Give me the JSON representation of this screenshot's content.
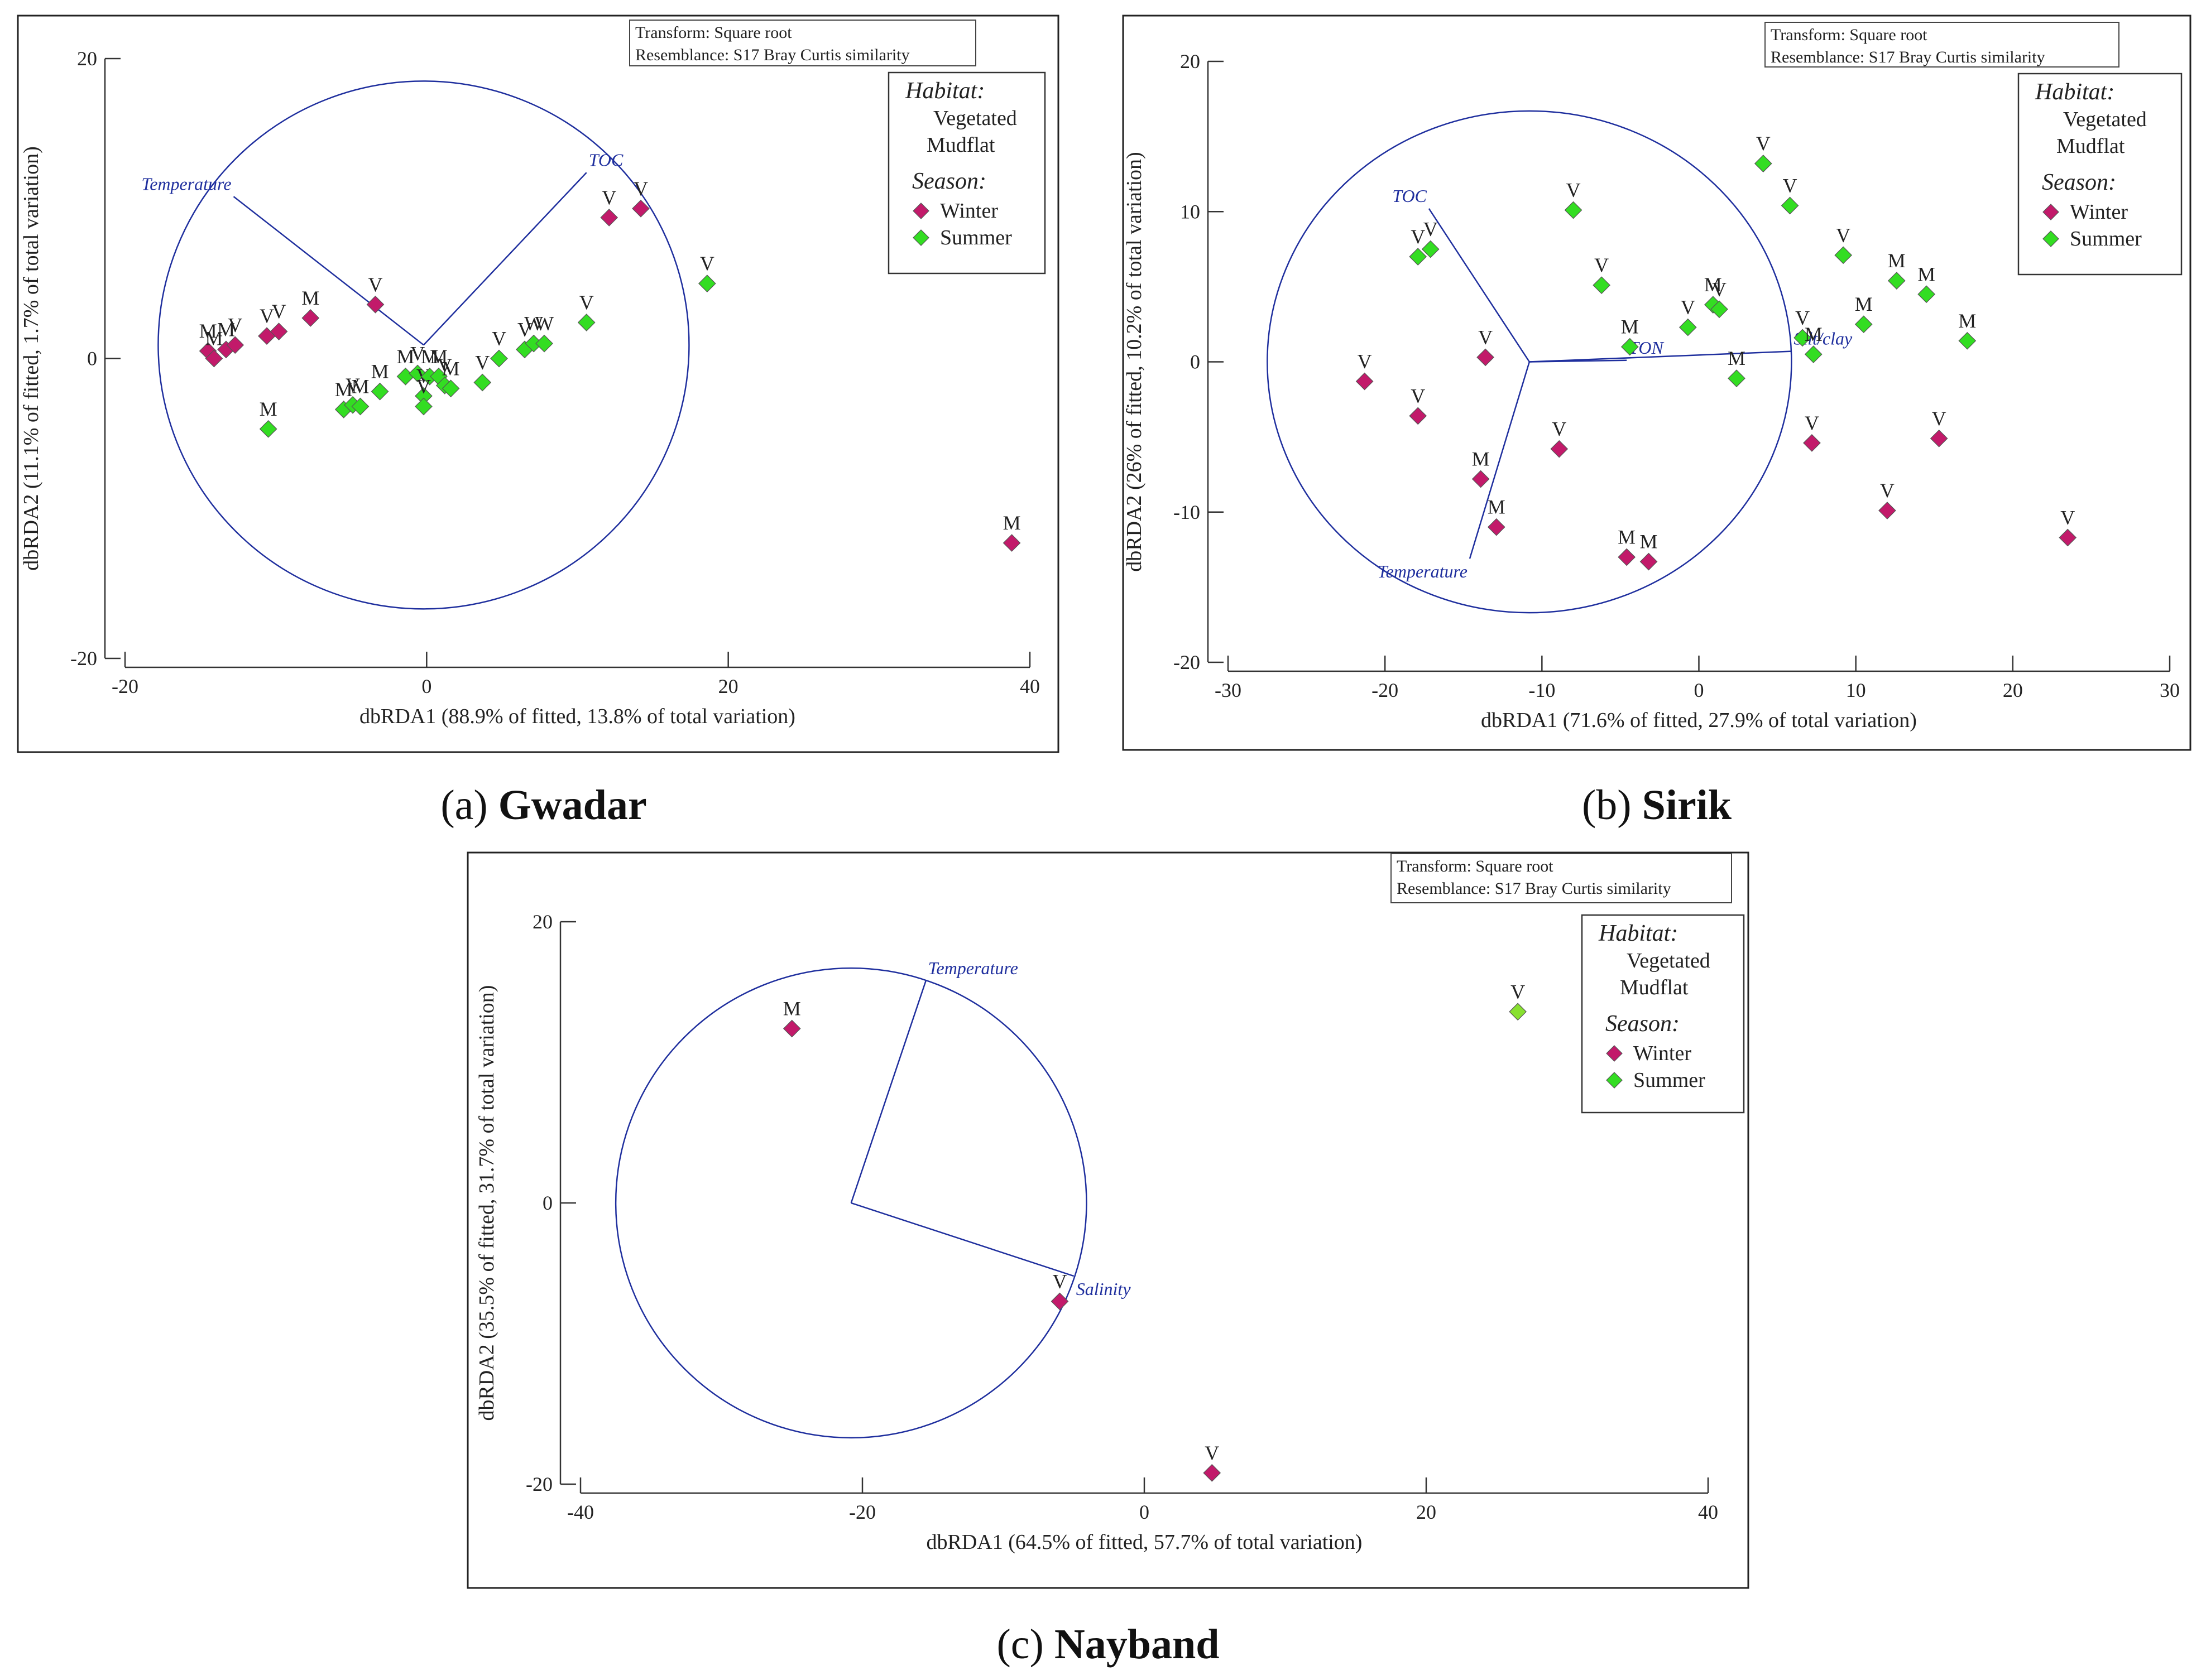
{
  "colors": {
    "winter": "#c21a6a",
    "summer": "#33dd22",
    "summer_light": "#88e030",
    "vector": "#1f2f9e",
    "axis": "#333333",
    "frame": "#222222"
  },
  "chart_data": [
    {
      "type": "scatter",
      "id": "gwadar",
      "caption": {
        "letter": "(a)",
        "name": "Gwadar"
      },
      "xlabel": "dbRDA1 (88.9% of fitted, 13.8% of total variation)",
      "ylabel": "dbRDA2 (11.1% of fitted, 1.7% of total variation)",
      "xlim": [
        -20,
        40
      ],
      "ylim": [
        -20,
        20
      ],
      "xticks": [
        -20,
        0,
        20,
        40
      ],
      "yticks": [
        -20,
        0,
        20
      ],
      "transform": {
        "line1": "Transform: Square root",
        "line2": "Resemblance: S17 Bray Curtis similarity"
      },
      "legend": {
        "habitat_title": "Habitat:",
        "habitat_items": [
          "Vegetated",
          "Mudflat"
        ],
        "season_title": "Season:",
        "season_items": [
          "Winter",
          "Summer"
        ]
      },
      "circle": {
        "cx": -0.2,
        "cy": 0.9,
        "r": 17.6
      },
      "vectors": [
        {
          "label": "Temperature",
          "x": -12.8,
          "y": 10.8
        },
        {
          "label": "TOC",
          "x": 10.6,
          "y": 12.4
        }
      ],
      "points": [
        {
          "x": -14.5,
          "y": 0.5,
          "label": "M",
          "season": "winter"
        },
        {
          "x": -14.1,
          "y": 0.0,
          "label": "M",
          "season": "winter"
        },
        {
          "x": -13.3,
          "y": 0.6,
          "label": "M",
          "season": "winter"
        },
        {
          "x": -12.7,
          "y": 0.9,
          "label": "V",
          "season": "winter"
        },
        {
          "x": -10.6,
          "y": 1.5,
          "label": "V",
          "season": "winter"
        },
        {
          "x": -9.8,
          "y": 1.8,
          "label": "V",
          "season": "winter"
        },
        {
          "x": -7.7,
          "y": 2.7,
          "label": "M",
          "season": "winter"
        },
        {
          "x": -3.4,
          "y": 3.6,
          "label": "V",
          "season": "winter"
        },
        {
          "x": 12.1,
          "y": 9.4,
          "label": "V",
          "season": "winter"
        },
        {
          "x": 14.2,
          "y": 10.0,
          "label": "V",
          "season": "winter"
        },
        {
          "x": 38.8,
          "y": -12.3,
          "label": "M",
          "season": "winter"
        },
        {
          "x": -10.5,
          "y": -4.7,
          "label": "M",
          "season": "summer"
        },
        {
          "x": -5.5,
          "y": -3.4,
          "label": "M",
          "season": "summer"
        },
        {
          "x": -4.9,
          "y": -3.1,
          "label": "V",
          "season": "summer"
        },
        {
          "x": -4.4,
          "y": -3.2,
          "label": "M",
          "season": "summer"
        },
        {
          "x": -3.1,
          "y": -2.2,
          "label": "M",
          "season": "summer"
        },
        {
          "x": -1.4,
          "y": -1.2,
          "label": "M",
          "season": "summer"
        },
        {
          "x": -0.6,
          "y": -1.0,
          "label": "V",
          "season": "summer"
        },
        {
          "x": -0.2,
          "y": -2.5,
          "label": "V",
          "season": "summer"
        },
        {
          "x": 0.2,
          "y": -1.2,
          "label": "M",
          "season": "summer"
        },
        {
          "x": 0.8,
          "y": -1.2,
          "label": "M",
          "season": "summer"
        },
        {
          "x": 1.2,
          "y": -1.8,
          "label": "V",
          "season": "summer"
        },
        {
          "x": 1.6,
          "y": -2.0,
          "label": "M",
          "season": "summer"
        },
        {
          "x": -0.2,
          "y": -3.2,
          "label": "V",
          "season": "summer"
        },
        {
          "x": 3.7,
          "y": -1.6,
          "label": "V",
          "season": "summer"
        },
        {
          "x": 4.8,
          "y": 0.0,
          "label": "V",
          "season": "summer"
        },
        {
          "x": 6.5,
          "y": 0.6,
          "label": "V",
          "season": "summer"
        },
        {
          "x": 7.1,
          "y": 1.0,
          "label": "W",
          "season": "summer"
        },
        {
          "x": 7.8,
          "y": 1.0,
          "label": "W",
          "season": "summer"
        },
        {
          "x": 10.6,
          "y": 2.4,
          "label": "V",
          "season": "summer"
        },
        {
          "x": 18.6,
          "y": 5.0,
          "label": "V",
          "season": "summer"
        }
      ]
    },
    {
      "type": "scatter",
      "id": "sirik",
      "caption": {
        "letter": "(b)",
        "name": "Sirik"
      },
      "xlabel": "dbRDA1 (71.6% of fitted, 27.9% of total variation)",
      "ylabel": "dbRDA2 (26% of fitted, 10.2% of total variation)",
      "xlim": [
        -30,
        30
      ],
      "ylim": [
        -20,
        20
      ],
      "xticks": [
        -30,
        -20,
        -10,
        0,
        10,
        20,
        30
      ],
      "yticks": [
        -20,
        -10,
        0,
        10,
        20
      ],
      "transform": {
        "line1": "Transform: Square root",
        "line2": "Resemblance: S17 Bray Curtis similarity"
      },
      "legend": {
        "habitat_title": "Habitat:",
        "habitat_items": [
          "Vegetated",
          "Mudflat"
        ],
        "season_title": "Season:",
        "season_items": [
          "Winter",
          "Summer"
        ]
      },
      "circle": {
        "cx": -10.8,
        "cy": 0.0,
        "r": 16.7
      },
      "vectors": [
        {
          "label": "TOC",
          "x": -17.2,
          "y": 10.2
        },
        {
          "label": "Temperature",
          "x": -14.6,
          "y": -13.1
        },
        {
          "label": "TON",
          "x": -4.6,
          "y": 0.1
        },
        {
          "label": "Silt/clay",
          "x": 5.9,
          "y": 0.7
        }
      ],
      "points": [
        {
          "x": -21.3,
          "y": -1.3,
          "label": "V",
          "season": "winter"
        },
        {
          "x": -17.9,
          "y": -3.6,
          "label": "V",
          "season": "winter"
        },
        {
          "x": -13.6,
          "y": 0.3,
          "label": "V",
          "season": "winter"
        },
        {
          "x": -13.9,
          "y": -7.8,
          "label": "M",
          "season": "winter"
        },
        {
          "x": -12.9,
          "y": -11.0,
          "label": "M",
          "season": "winter"
        },
        {
          "x": -8.9,
          "y": -5.8,
          "label": "V",
          "season": "winter"
        },
        {
          "x": -4.6,
          "y": -13.0,
          "label": "M",
          "season": "winter"
        },
        {
          "x": -3.2,
          "y": -13.3,
          "label": "M",
          "season": "winter"
        },
        {
          "x": 7.2,
          "y": -5.4,
          "label": "V",
          "season": "winter"
        },
        {
          "x": 12.0,
          "y": -9.9,
          "label": "V",
          "season": "winter"
        },
        {
          "x": 15.3,
          "y": -5.1,
          "label": "V",
          "season": "winter"
        },
        {
          "x": 23.5,
          "y": -11.7,
          "label": "V",
          "season": "winter"
        },
        {
          "x": -17.9,
          "y": 7.0,
          "label": "V",
          "season": "summer"
        },
        {
          "x": -17.1,
          "y": 7.5,
          "label": "V",
          "season": "summer"
        },
        {
          "x": -8.0,
          "y": 10.1,
          "label": "V",
          "season": "summer"
        },
        {
          "x": -6.2,
          "y": 5.1,
          "label": "V",
          "season": "summer"
        },
        {
          "x": -4.4,
          "y": 1.0,
          "label": "M",
          "season": "summer"
        },
        {
          "x": -0.7,
          "y": 2.3,
          "label": "V",
          "season": "summer"
        },
        {
          "x": 0.9,
          "y": 3.8,
          "label": "M",
          "season": "summer"
        },
        {
          "x": 1.3,
          "y": 3.5,
          "label": "V",
          "season": "summer"
        },
        {
          "x": 2.4,
          "y": -1.1,
          "label": "M",
          "season": "summer"
        },
        {
          "x": 4.1,
          "y": 13.2,
          "label": "V",
          "season": "summer"
        },
        {
          "x": 5.8,
          "y": 10.4,
          "label": "V",
          "season": "summer"
        },
        {
          "x": 6.6,
          "y": 1.6,
          "label": "V",
          "season": "summer"
        },
        {
          "x": 7.3,
          "y": 0.5,
          "label": "M",
          "season": "summer"
        },
        {
          "x": 9.2,
          "y": 7.1,
          "label": "V",
          "season": "summer"
        },
        {
          "x": 10.5,
          "y": 2.5,
          "label": "M",
          "season": "summer"
        },
        {
          "x": 12.6,
          "y": 5.4,
          "label": "M",
          "season": "summer"
        },
        {
          "x": 14.5,
          "y": 4.5,
          "label": "M",
          "season": "summer"
        },
        {
          "x": 17.1,
          "y": 1.4,
          "label": "M",
          "season": "summer"
        }
      ]
    },
    {
      "type": "scatter",
      "id": "nayband",
      "caption": {
        "letter": "(c)",
        "name": "Nayband"
      },
      "xlabel": "dbRDA1 (64.5% of fitted, 57.7% of total variation)",
      "ylabel": "dbRDA2 (35.5% of fitted, 31.7% of total variation)",
      "xlim": [
        -40,
        40
      ],
      "ylim": [
        -20,
        20
      ],
      "xticks": [
        -40,
        -20,
        0,
        20,
        40
      ],
      "yticks": [
        -20,
        0,
        20
      ],
      "transform": {
        "line1": "Transform: Square root",
        "line2": "Resemblance: S17 Bray Curtis similarity"
      },
      "legend": {
        "habitat_title": "Habitat:",
        "habitat_items": [
          "Vegetated",
          "Mudflat"
        ],
        "season_title": "Season:",
        "season_items": [
          "Winter",
          "Summer"
        ]
      },
      "circle": {
        "cx": -20.8,
        "cy": 0.0,
        "r": 16.7
      },
      "vectors": [
        {
          "label": "Temperature",
          "x": -15.5,
          "y": 15.8
        },
        {
          "label": "Salinity",
          "x": -5.0,
          "y": -5.2
        }
      ],
      "points": [
        {
          "x": -25.0,
          "y": 12.4,
          "label": "M",
          "season": "winter"
        },
        {
          "x": -6.0,
          "y": -7.0,
          "label": "V",
          "season": "winter"
        },
        {
          "x": 4.8,
          "y": -19.2,
          "label": "V",
          "season": "winter"
        },
        {
          "x": 26.5,
          "y": 13.6,
          "label": "V",
          "season": "summer_light"
        }
      ]
    }
  ]
}
